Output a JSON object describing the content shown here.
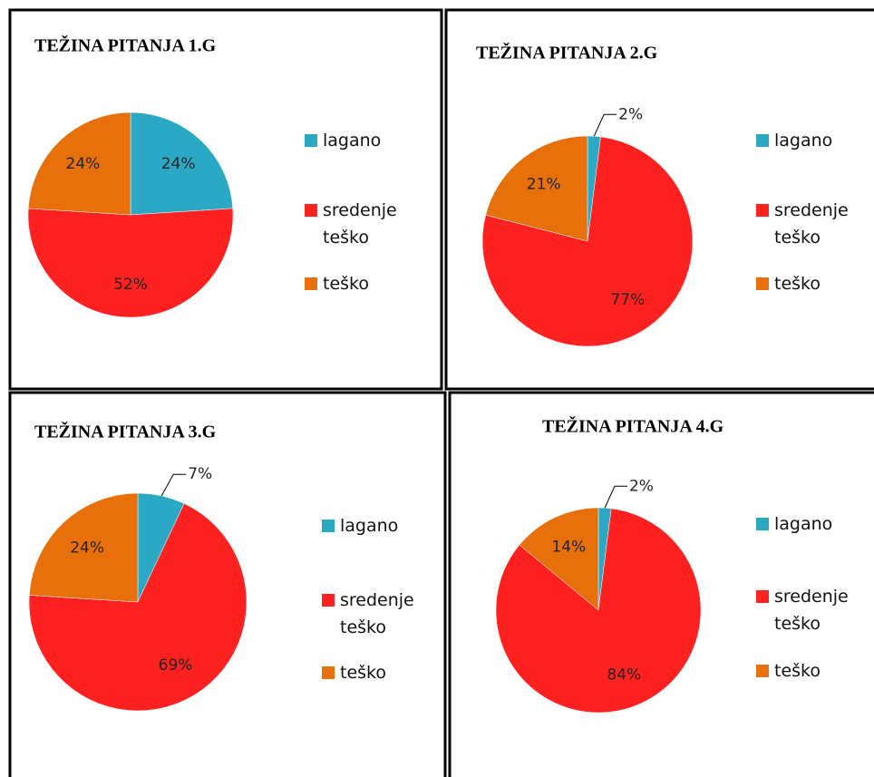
{
  "chart_data": [
    {
      "type": "pie",
      "title": "TEŽINA PITANJA 1.G",
      "categories": [
        "lagano",
        "sredenje teško",
        "teško"
      ],
      "values": [
        24,
        52,
        24
      ],
      "value_labels": [
        "24%",
        "52%",
        "24%"
      ],
      "colors": [
        "#2aa8c4",
        "#ff2020",
        "#e8700a"
      ]
    },
    {
      "type": "pie",
      "title": "TEŽINA PITANJA 2.G",
      "categories": [
        "lagano",
        "sredenje teško",
        "teško"
      ],
      "values": [
        2,
        77,
        21
      ],
      "value_labels": [
        "2%",
        "77%",
        "21%"
      ],
      "colors": [
        "#2aa8c4",
        "#ff2020",
        "#e8700a"
      ]
    },
    {
      "type": "pie",
      "title": "TEŽINA PITANJA  3.G",
      "categories": [
        "lagano",
        "sredenje teško",
        "teško"
      ],
      "values": [
        7,
        69,
        24
      ],
      "value_labels": [
        "7%",
        "69%",
        "24%"
      ],
      "colors": [
        "#2aa8c4",
        "#ff2020",
        "#e8700a"
      ]
    },
    {
      "type": "pie",
      "title": "TEŽINA  PITANJA  4.G",
      "categories": [
        "lagano",
        "sredenje teško",
        "teško"
      ],
      "values": [
        2,
        84,
        14
      ],
      "value_labels": [
        "2%",
        "84%",
        "14%"
      ],
      "colors": [
        "#2aa8c4",
        "#ff2020",
        "#e8700a"
      ]
    }
  ]
}
